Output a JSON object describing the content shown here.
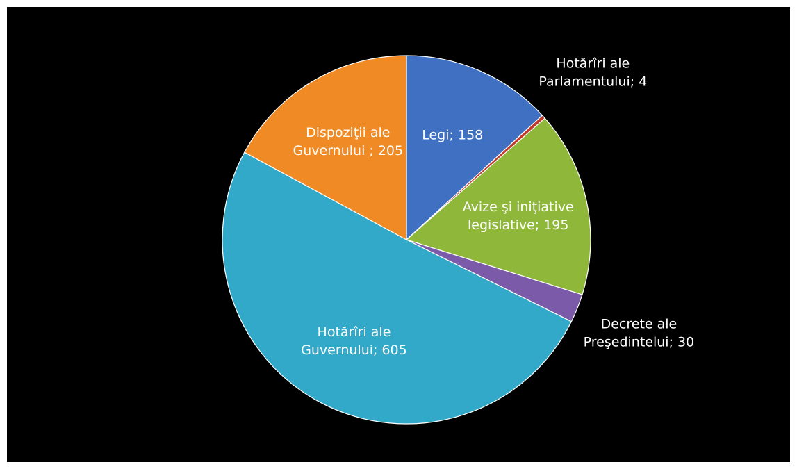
{
  "chart_data": {
    "type": "pie",
    "categories": [
      "Legi",
      "Hotărîri ale Parlamentului",
      "Avize şi iniţiative legislative",
      "Decrete ale Preşedintelui",
      "Hotărîri ale Guvernului",
      "Dispoziţii ale Guvernului "
    ],
    "values": [
      158,
      4,
      195,
      30,
      605,
      205
    ],
    "value_labels": [
      "Legi; 158",
      "Hotărîri ale Parlamentului; 4",
      "Avize şi iniţiative legislative; 195",
      "Decrete ale Preşedintelui; 30",
      "Hotărîri ale Guvernului; 605",
      "Dispoziţii ale Guvernului ; 205"
    ],
    "colors": [
      "#3f70c2",
      "#c0392b",
      "#8fb83b",
      "#7b5aa9",
      "#33a9c9",
      "#f08a25"
    ]
  }
}
